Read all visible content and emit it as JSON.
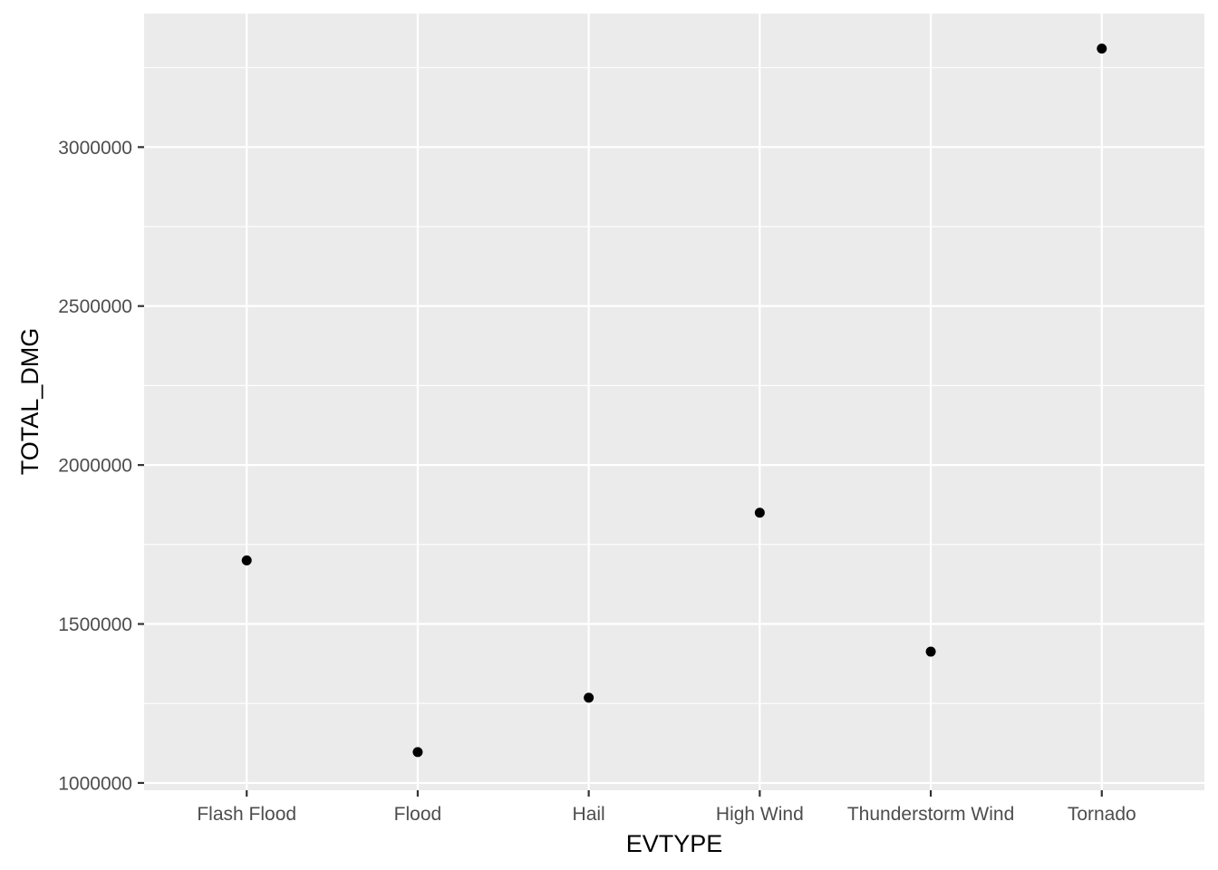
{
  "chart_data": {
    "type": "scatter",
    "title": "",
    "xlabel": "EVTYPE",
    "ylabel": "TOTAL_DMG",
    "categories": [
      "Flash Flood",
      "Flood",
      "Hail",
      "High Wind",
      "Thunderstorm Wind",
      "Tornado"
    ],
    "values": [
      1700000,
      1097000,
      1268000,
      1850000,
      1413000,
      3310000
    ],
    "ylim": [
      977000,
      3420000
    ],
    "yticks": [
      1000000,
      1500000,
      2000000,
      2500000,
      3000000
    ],
    "ytick_labels": [
      "1000000",
      "1500000",
      "2000000",
      "2500000",
      "3000000"
    ],
    "grid": true,
    "legend": "none",
    "colors": {
      "panel_background": "#ebebeb",
      "grid": "#ffffff",
      "point": "#000000",
      "tick": "#333333",
      "tick_label": "#4d4d4d"
    }
  }
}
